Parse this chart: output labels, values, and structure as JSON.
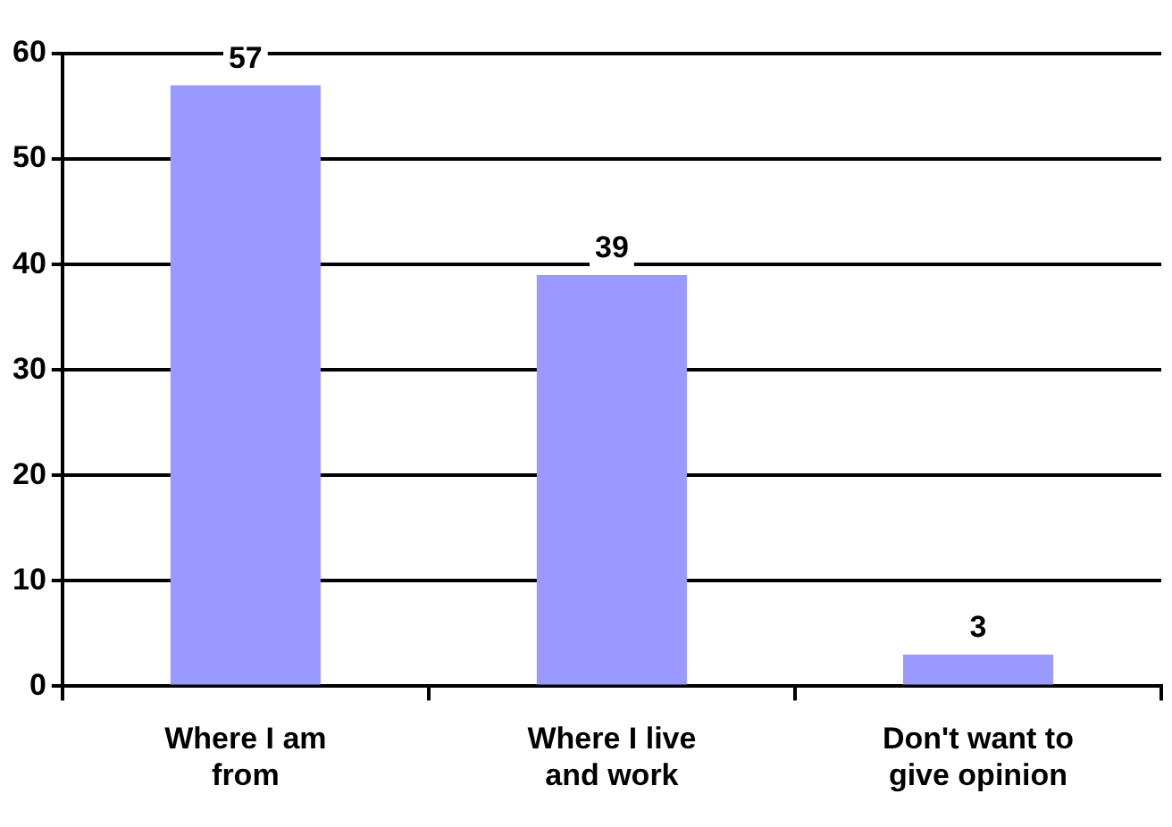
{
  "chart_data": {
    "type": "bar",
    "categories": [
      "Where I am from",
      "Where I live and work",
      "Don't want to give opinion"
    ],
    "values": [
      57,
      39,
      3
    ],
    "color": "#9999ff",
    "ylim": [
      0,
      60
    ],
    "yticks": [
      0,
      10,
      20,
      30,
      40,
      50,
      60
    ],
    "grid": "y",
    "data_labels": true,
    "legend": false
  }
}
